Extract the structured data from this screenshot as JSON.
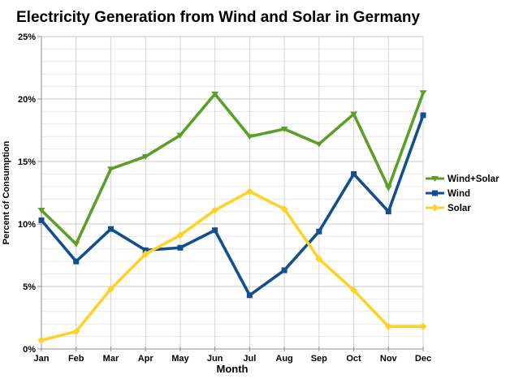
{
  "chart_data": {
    "type": "line",
    "title": "Electricity Generation from Wind and Solar in Germany",
    "xlabel": "Month",
    "ylabel": "Percent of Consumption",
    "categories": [
      "Jan",
      "Feb",
      "Mar",
      "Apr",
      "May",
      "Jun",
      "Jul",
      "Aug",
      "Sep",
      "Oct",
      "Nov",
      "Dec"
    ],
    "ylim": [
      0,
      25
    ],
    "y_major_step": 5,
    "y_minor_step": 1,
    "y_tick_labels": [
      "0%",
      "5%",
      "10%",
      "15%",
      "20%",
      "25%"
    ],
    "grid": true,
    "legend_position": "right",
    "series": [
      {
        "name": "Wind+Solar",
        "color": "#5AA028",
        "marker": "triangle-down",
        "values": [
          11.1,
          8.4,
          14.4,
          15.4,
          17.1,
          20.4,
          17.0,
          17.6,
          16.4,
          18.8,
          12.9,
          20.5
        ]
      },
      {
        "name": "Wind",
        "color": "#134F8C",
        "marker": "square",
        "values": [
          10.3,
          7.0,
          9.6,
          7.9,
          8.1,
          9.5,
          4.3,
          6.3,
          9.4,
          14.0,
          11.0,
          18.7
        ]
      },
      {
        "name": "Solar",
        "color": "#FFD228",
        "marker": "diamond",
        "values": [
          0.7,
          1.4,
          4.8,
          7.6,
          9.1,
          11.1,
          12.6,
          11.2,
          7.2,
          4.7,
          1.8,
          1.8
        ]
      }
    ],
    "colors": {
      "grid_minor": "#E9E9E9",
      "grid_major": "#C8C8C8",
      "grid_vertical": "#D4D4D4",
      "axis": "#8F8F8F",
      "text": "#000000",
      "background": "#FFFFFF"
    }
  }
}
